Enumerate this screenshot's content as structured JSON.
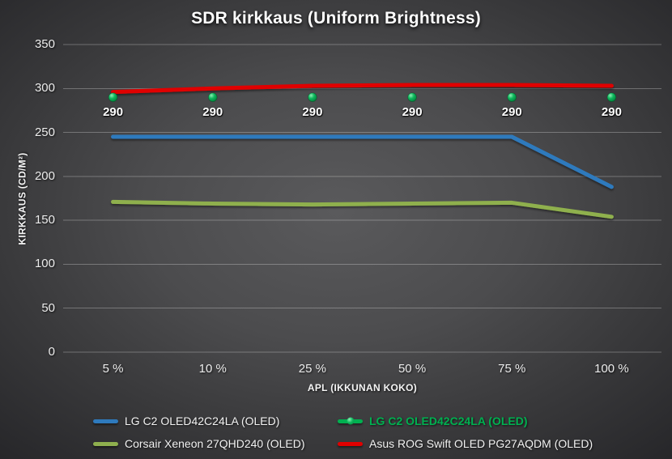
{
  "chart_data": {
    "type": "line",
    "title": "SDR kirkkaus (Uniform Brightness)",
    "categories": [
      "5 %",
      "10 %",
      "25 %",
      "50 %",
      "75 %",
      "100 %"
    ],
    "xlabel": "APL (IKKUNAN KOKO)",
    "ylabel": "KIRKKAUS (CD/M²)",
    "ylim": [
      0,
      350
    ],
    "y_ticks": [
      0,
      50,
      100,
      150,
      200,
      250,
      300,
      350
    ],
    "grid": "horizontal",
    "legend_position": "bottom-two-columns",
    "series": [
      {
        "name": "LG C2 OLED42C24LA (OLED)",
        "color": "#2E7ABD",
        "marker": false,
        "values": [
          245,
          245,
          245,
          245,
          245,
          188
        ],
        "label_style": "normal"
      },
      {
        "name": "LG C2 OLED42C24LA (OLED)",
        "color": "#00B050",
        "marker": true,
        "values": [
          290,
          290,
          290,
          290,
          290,
          290
        ],
        "point_labels": [
          "290",
          "290",
          "290",
          "290",
          "290",
          "290"
        ],
        "label_style": "green-bold"
      },
      {
        "name": "Corsair Xeneon 27QHD240 (OLED)",
        "color": "#8FB04E",
        "marker": false,
        "values": [
          171,
          169,
          168,
          169,
          170,
          154
        ],
        "label_style": "normal"
      },
      {
        "name": "Asus ROG Swift OLED PG27AQDM (OLED)",
        "color": "#E00000",
        "marker": false,
        "values": [
          296,
          300,
          303,
          304,
          304,
          303
        ],
        "label_style": "normal"
      }
    ],
    "colors": {
      "background_center": "#5a5a5c",
      "background_edge": "#262629",
      "gridline": "rgba(255,255,255,0.28)",
      "text": "#ffffff"
    }
  }
}
